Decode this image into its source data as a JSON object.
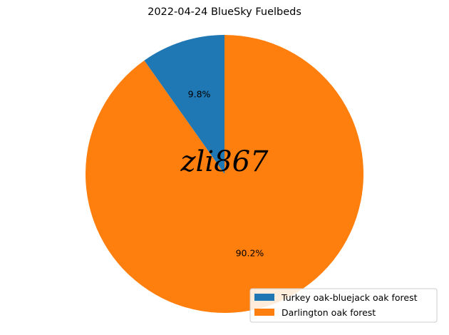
{
  "chart_data": {
    "type": "pie",
    "title": "2022-04-24 BlueSky Fuelbeds",
    "slices": [
      {
        "label": "Turkey oak-bluejack oak forest",
        "value": 9.8,
        "pct_label": "9.8%",
        "color": "#1f77b4"
      },
      {
        "label": "Darlington oak forest",
        "value": 90.2,
        "pct_label": "90.2%",
        "color": "#ff7f0e"
      }
    ],
    "start_angle_deg": 90,
    "direction": "counterclockwise",
    "legend_position": "lower-right"
  },
  "watermark": {
    "text": "zli867"
  }
}
